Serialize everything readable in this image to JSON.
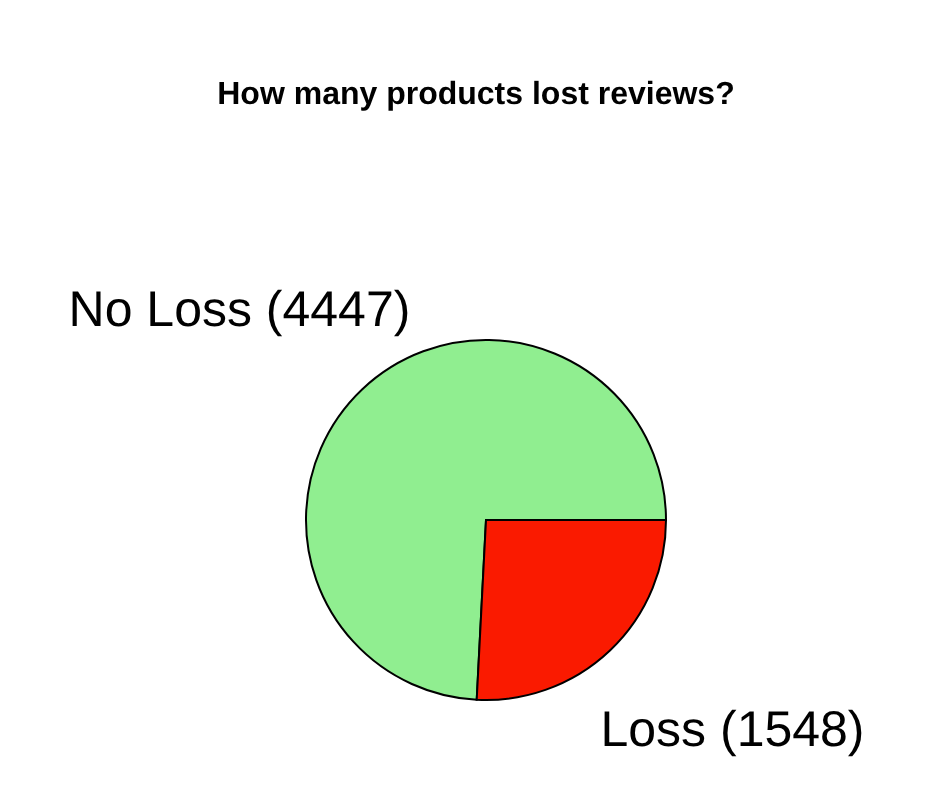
{
  "chart_data": {
    "type": "pie",
    "title": "How many products lost reviews?",
    "categories": [
      "No Loss (4447)",
      "Loss (1548)"
    ],
    "values": [
      4447,
      1548
    ],
    "colors": [
      "#90ee90",
      "#fa1a00"
    ]
  }
}
